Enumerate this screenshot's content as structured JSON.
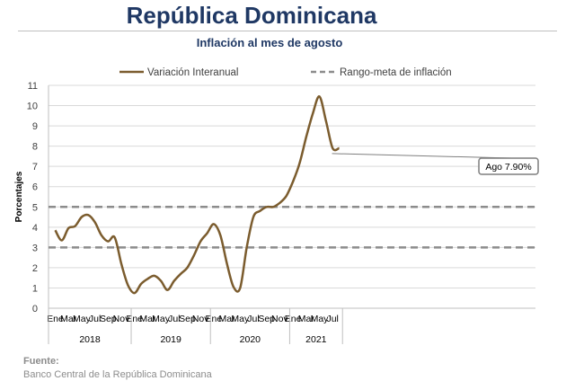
{
  "header": {
    "title": "República Dominicana",
    "subtitle": "Inflación al mes de agosto"
  },
  "source": {
    "label": "Fuente:",
    "text": "Banco Central de la República Dominicana"
  },
  "colors": {
    "series": "#7b5c2e",
    "target": "#8c8c8c",
    "grid": "#d9d9d9",
    "title": "#1f3864"
  },
  "chart_data": {
    "type": "line",
    "ylabel": "Porcentajes",
    "ylim": [
      0,
      11
    ],
    "yticks": [
      0,
      1,
      2,
      3,
      4,
      5,
      6,
      7,
      8,
      9,
      10,
      11
    ],
    "grid": "horizontal",
    "legend_position": "top",
    "x_tick_labels": [
      "Ene",
      "Mar",
      "May",
      "Jul",
      "Sep",
      "Nov",
      "Ene",
      "Mar",
      "May",
      "Jul",
      "Sep",
      "Nov",
      "Ene",
      "Mar",
      "May",
      "Jul",
      "Sep",
      "Nov",
      "Ene",
      "Mar",
      "May",
      "Jul"
    ],
    "year_groups": [
      {
        "label": "2018",
        "months": 12
      },
      {
        "label": "2019",
        "months": 12
      },
      {
        "label": "2020",
        "months": 12
      },
      {
        "label": "2021",
        "months": 8
      }
    ],
    "series": [
      {
        "name": "Variación Interanual",
        "style": "solid",
        "x": [
          "2018-01",
          "2018-02",
          "2018-03",
          "2018-04",
          "2018-05",
          "2018-06",
          "2018-07",
          "2018-08",
          "2018-09",
          "2018-10",
          "2018-11",
          "2018-12",
          "2019-01",
          "2019-02",
          "2019-03",
          "2019-04",
          "2019-05",
          "2019-06",
          "2019-07",
          "2019-08",
          "2019-09",
          "2019-10",
          "2019-11",
          "2019-12",
          "2020-01",
          "2020-02",
          "2020-03",
          "2020-04",
          "2020-05",
          "2020-06",
          "2020-07",
          "2020-08",
          "2020-09",
          "2020-10",
          "2020-11",
          "2020-12",
          "2021-01",
          "2021-02",
          "2021-03",
          "2021-04",
          "2021-05",
          "2021-06",
          "2021-07",
          "2021-08"
        ],
        "values": [
          3.85,
          3.35,
          3.95,
          4.05,
          4.5,
          4.6,
          4.25,
          3.6,
          3.3,
          3.5,
          2.2,
          1.15,
          0.75,
          1.2,
          1.45,
          1.6,
          1.35,
          0.9,
          1.35,
          1.7,
          2.0,
          2.6,
          3.3,
          3.7,
          4.15,
          3.6,
          2.2,
          1.05,
          1.0,
          3.0,
          4.5,
          4.8,
          5.0,
          5.0,
          5.2,
          5.55,
          6.25,
          7.15,
          8.45,
          9.6,
          10.45,
          9.25,
          7.9,
          7.9
        ]
      },
      {
        "name": "Rango-meta de inflación",
        "style": "dashed",
        "lower": 3,
        "upper": 5
      }
    ],
    "annotation": "Ago 7.90%"
  }
}
